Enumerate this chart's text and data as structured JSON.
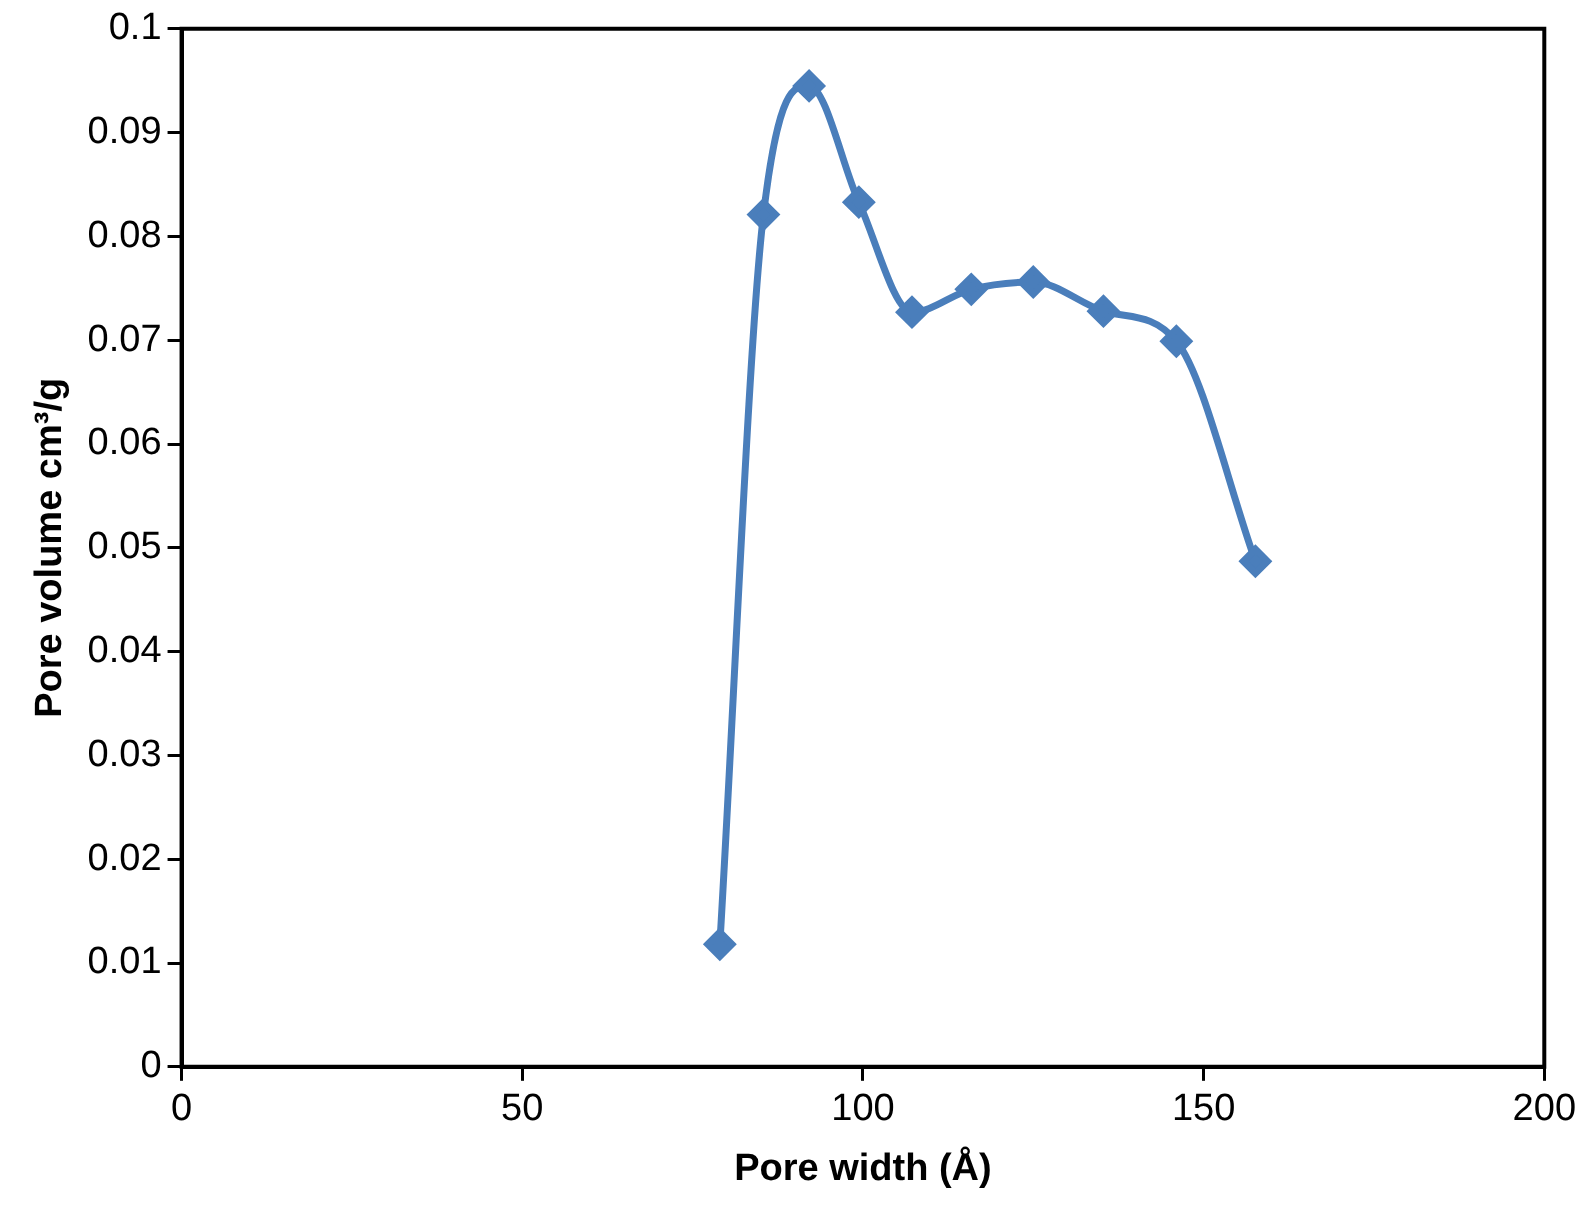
{
  "chart_data": {
    "type": "line",
    "xlabel": "Pore width (Å)",
    "ylabel": "Pore volume cm³/g",
    "x": [
      79.0,
      85.4,
      92.1,
      99.4,
      107.2,
      115.9,
      125.0,
      135.3,
      146.0,
      157.6
    ],
    "series": [
      {
        "color": "#4a7ebb",
        "values": [
          0.0118,
          0.0821,
          0.0945,
          0.0833,
          0.0727,
          0.0749,
          0.0756,
          0.0728,
          0.0699,
          0.0487
        ]
      }
    ],
    "xlim": [
      0,
      200
    ],
    "xticks": [
      0,
      50,
      100,
      150,
      200
    ],
    "ylim": [
      0,
      0.1
    ],
    "yticks": [
      0,
      0.01,
      0.02,
      0.03,
      0.04,
      0.05,
      0.06,
      0.07,
      0.08,
      0.09,
      0.1
    ],
    "grid": false,
    "legend": false,
    "marker": "diamond",
    "line_style": "solid"
  }
}
